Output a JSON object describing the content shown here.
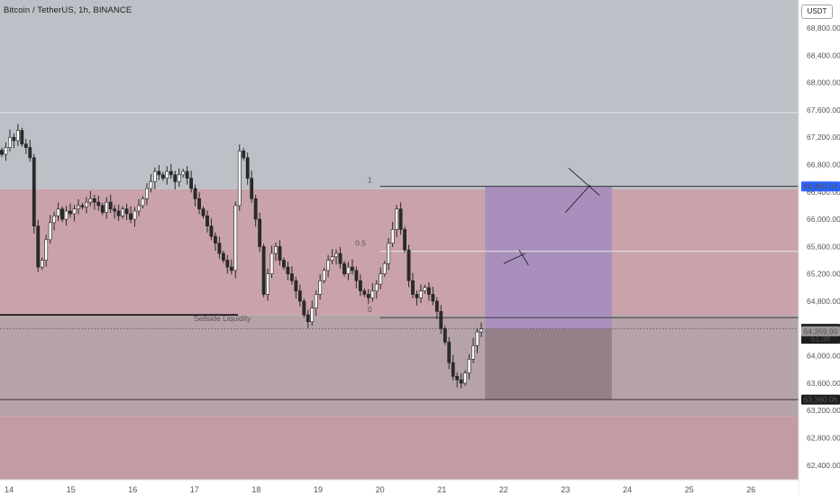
{
  "header": {
    "title": "Bitcoin / TetherUS, 1h, BINANCE"
  },
  "toolbar": {
    "currency": "USDT"
  },
  "colors": {
    "up": "#2a2a2a",
    "down": "#2a2a2a",
    "premium_zone": "#c9a2aa",
    "discount_zone": "#b5a3a8",
    "upper_area": "#bdc1c7",
    "lower_area": "#c29ba3",
    "projection_box": "#a990bc",
    "projection_stop": "#957f88",
    "price_badge": "#2962ff"
  },
  "chart_data": {
    "type": "candlestick",
    "y_axis_ticks": [
      "68,800.00",
      "68,400.00",
      "68,000.00",
      "67,600.00",
      "67,200.00",
      "66,800.00",
      "66,400.00",
      "66,000.00",
      "65,600.00",
      "65,200.00",
      "64,800.00",
      "64,400.00",
      "64,000.00",
      "63,600.00",
      "63,200.00",
      "62,800.00",
      "62,400.00"
    ],
    "y_axis_values": [
      68800,
      68400,
      68000,
      67600,
      67200,
      66800,
      66400,
      66000,
      65600,
      65200,
      64800,
      64400,
      64000,
      63600,
      63200,
      62800,
      62400
    ],
    "x_axis_ticks": [
      "14",
      "15",
      "16",
      "17",
      "18",
      "19",
      "20",
      "21",
      "22",
      "23",
      "24",
      "25",
      "26"
    ],
    "price_labels": [
      {
        "text": "66,480.04",
        "value": 66480.04,
        "style": "blue"
      },
      {
        "text": "64,394.99",
        "value": 64394.99,
        "style": "dark",
        "sub": "51:38"
      },
      {
        "text": "64,359.90",
        "value": 64359.9,
        "style": "gray"
      },
      {
        "text": "63,360.06",
        "value": 63360.06,
        "style": "dark"
      }
    ],
    "annotations": {
      "fib_1": "1",
      "fib_05": "0.5",
      "fib_0": "0",
      "sellside": "Sellside Liquidity"
    },
    "levels": {
      "top_range": 66480.04,
      "mid_range": 65530,
      "bottom_range": 64560,
      "sellside": 64600,
      "resistance_line": 67560,
      "lower_line": 63360.06,
      "zone_top": 66440,
      "zone_bottom": 63120
    },
    "series_close": [
      66950,
      67050,
      67200,
      67150,
      67300,
      67100,
      67050,
      66900,
      65900,
      65300,
      65400,
      65700,
      65950,
      66050,
      66150,
      66000,
      66120,
      66080,
      66150,
      66200,
      66180,
      66250,
      66300,
      66250,
      66200,
      66100,
      66250,
      66150,
      66120,
      66050,
      66150,
      66080,
      66000,
      66120,
      66200,
      66300,
      66450,
      66550,
      66700,
      66650,
      66600,
      66700,
      66650,
      66550,
      66650,
      66700,
      66600,
      66450,
      66300,
      66150,
      66050,
      65900,
      65750,
      65650,
      65500,
      65400,
      65300,
      65250,
      66200,
      67000,
      66900,
      66600,
      66300,
      66000,
      65600,
      64900,
      65200,
      65500,
      65600,
      65400,
      65300,
      65200,
      65100,
      64950,
      64800,
      64600,
      64500,
      64700,
      64900,
      65100,
      65250,
      65400,
      65450,
      65500,
      65350,
      65200,
      65300,
      65250,
      65100,
      64950,
      64900,
      64850,
      64950,
      65050,
      65200,
      65350,
      65650,
      65850,
      66150,
      65850,
      65550,
      65100,
      64900,
      64850,
      64950,
      65000,
      64900,
      64800,
      64650,
      64400,
      64200,
      63900,
      63700,
      63650,
      63600,
      63750,
      63950,
      64150,
      64350,
      64395
    ],
    "x_start_day": 14,
    "x_day_spacing": 68.6
  }
}
